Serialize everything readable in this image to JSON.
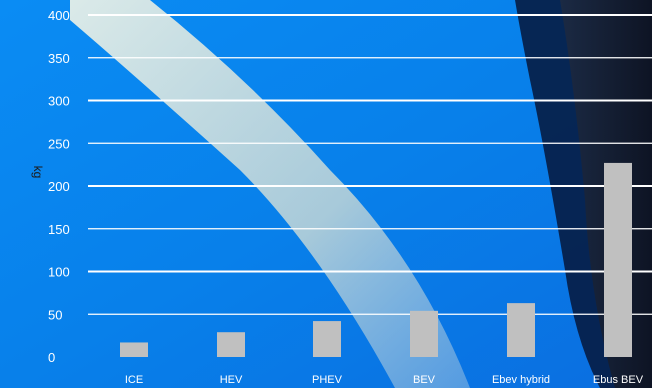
{
  "chart_data": {
    "type": "bar",
    "categories": [
      "ICE",
      "HEV",
      "PHEV",
      "BEV",
      "Ebev hybrid",
      "Ebus BEV"
    ],
    "values": [
      17,
      29,
      42,
      54,
      63,
      227
    ],
    "ylabel": "kg",
    "yticks": [
      0,
      50,
      100,
      150,
      200,
      250,
      300,
      350,
      400
    ],
    "ylim": [
      0,
      400
    ],
    "grid": true,
    "colors": {
      "bar": "#c0c0c0",
      "grid": "#ffffff",
      "text": "#ffffff",
      "axis_title": "#1b1b1b",
      "background": "#0a86f0"
    }
  }
}
